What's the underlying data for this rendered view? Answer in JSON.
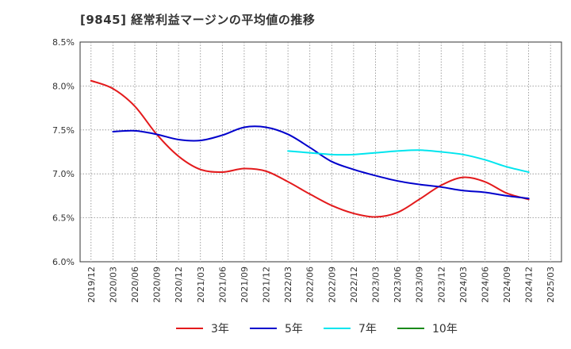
{
  "chart_data": {
    "type": "line",
    "title": "[9845]  経常利益マージンの平均値の推移",
    "xlabel": "",
    "ylabel": "",
    "ylim": [
      6.0,
      8.5
    ],
    "yticks": [
      "6.0%",
      "6.5%",
      "7.0%",
      "7.5%",
      "8.0%",
      "8.5%"
    ],
    "xticks": [
      "2019/12",
      "2020/03",
      "2020/06",
      "2020/09",
      "2020/12",
      "2021/03",
      "2021/06",
      "2021/09",
      "2021/12",
      "2022/03",
      "2022/06",
      "2022/09",
      "2022/12",
      "2023/03",
      "2023/06",
      "2023/09",
      "2023/12",
      "2024/03",
      "2024/06",
      "2024/09",
      "2024/12",
      "2025/03"
    ],
    "grid": true,
    "legend_position": "bottom",
    "series": [
      {
        "name": "3年",
        "color": "#e31a1c",
        "values": [
          8.06,
          7.97,
          7.77,
          7.45,
          7.2,
          7.05,
          7.02,
          7.06,
          7.03,
          6.91,
          6.77,
          6.64,
          6.55,
          6.51,
          6.56,
          6.71,
          6.87,
          6.96,
          6.91,
          6.78,
          6.71,
          null
        ]
      },
      {
        "name": "5年",
        "color": "#0000cc",
        "values": [
          null,
          7.48,
          7.49,
          7.45,
          7.39,
          7.38,
          7.44,
          7.53,
          7.53,
          7.45,
          7.3,
          7.14,
          7.05,
          6.98,
          6.92,
          6.88,
          6.85,
          6.81,
          6.79,
          6.75,
          6.72,
          null
        ]
      },
      {
        "name": "7年",
        "color": "#00e5ee",
        "values": [
          null,
          null,
          null,
          null,
          null,
          null,
          null,
          null,
          null,
          7.26,
          7.24,
          7.22,
          7.22,
          7.24,
          7.26,
          7.27,
          7.25,
          7.22,
          7.16,
          7.08,
          7.02,
          null
        ]
      },
      {
        "name": "10年",
        "color": "#1a8a1a",
        "values": [
          null,
          null,
          null,
          null,
          null,
          null,
          null,
          null,
          null,
          null,
          null,
          null,
          null,
          null,
          null,
          null,
          null,
          null,
          null,
          null,
          null,
          null
        ]
      }
    ]
  }
}
